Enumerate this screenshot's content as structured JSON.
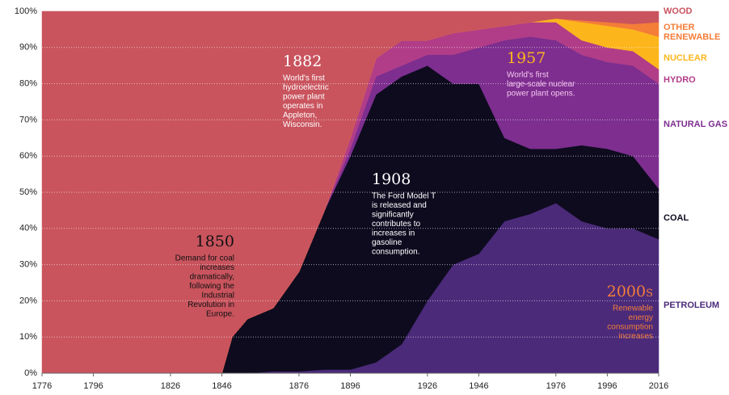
{
  "chart_data": {
    "type": "stacked_area",
    "x": [
      1776,
      1846,
      1850,
      1856,
      1866,
      1876,
      1886,
      1896,
      1906,
      1916,
      1926,
      1936,
      1946,
      1956,
      1966,
      1976,
      1986,
      1996,
      2006,
      2016
    ],
    "series": [
      {
        "name": "PETROLEUM",
        "color": "#4b2a7a",
        "values": [
          0,
          0,
          0,
          0,
          0.5,
          0.5,
          1,
          1,
          3,
          8,
          20,
          30,
          33,
          42,
          44,
          47,
          42,
          40,
          40,
          37
        ]
      },
      {
        "name": "COAL",
        "color": "#0e0b1f",
        "values": [
          0,
          0,
          10,
          15,
          17.5,
          27.5,
          44,
          59,
          74,
          74,
          65,
          50,
          47,
          23,
          18,
          15,
          21,
          22,
          20,
          14
        ]
      },
      {
        "name": "NATURAL GAS",
        "color": "#7d2e8f",
        "values": [
          0,
          0,
          0,
          0,
          0,
          0,
          0,
          2,
          5,
          3,
          3,
          8,
          10,
          27,
          31,
          30,
          25,
          24,
          25,
          29
        ]
      },
      {
        "name": "HYDRO",
        "color": "#b13d88",
        "values": [
          0,
          0,
          0,
          0,
          0,
          0,
          0,
          3,
          5,
          7,
          4,
          6,
          5,
          4,
          4,
          5,
          4,
          4,
          4,
          4
        ]
      },
      {
        "name": "NUCLEAR",
        "color": "#fcb61c",
        "values": [
          0,
          0,
          0,
          0,
          0,
          0,
          0,
          0,
          0,
          0,
          0,
          0,
          0,
          0,
          0,
          1,
          5,
          6,
          6,
          9
        ]
      },
      {
        "name": "OTHER RENEWABLE",
        "color": "#f47d38",
        "values": [
          0,
          0,
          0,
          0,
          0,
          0,
          0,
          0,
          0,
          0,
          0,
          0,
          0,
          0,
          0,
          0,
          0.5,
          1,
          1.5,
          4
        ]
      },
      {
        "name": "WOOD",
        "color": "#c9545e",
        "values": [
          100,
          100,
          90,
          85,
          82,
          72,
          55,
          35,
          13,
          8,
          8,
          6,
          5,
          4,
          3,
          2,
          2.5,
          3,
          3.5,
          3
        ]
      }
    ],
    "xlim": [
      1776,
      2016
    ],
    "xticks": [
      1776,
      1796,
      1826,
      1846,
      1876,
      1896,
      1926,
      1946,
      1976,
      1996,
      2016
    ],
    "ylim": [
      0,
      100
    ],
    "yticks": [
      {
        "value": 0,
        "label": "0%"
      },
      {
        "value": 10,
        "label": "10%"
      },
      {
        "value": 20,
        "label": "20%"
      },
      {
        "value": 30,
        "label": "30%"
      },
      {
        "value": 40,
        "label": "40%"
      },
      {
        "value": 50,
        "label": "50%"
      },
      {
        "value": 60,
        "label": "60%"
      },
      {
        "value": 70,
        "label": "70%"
      },
      {
        "value": 80,
        "label": "80%"
      },
      {
        "value": 90,
        "label": "90%"
      },
      {
        "value": 100,
        "label": "100%"
      }
    ],
    "grid": true,
    "annotations": [
      {
        "title": "1850",
        "lines": [
          "Demand for coal",
          "increases",
          "dramatically,",
          "following the",
          "Industrial",
          "Revolution in",
          "Europe."
        ]
      },
      {
        "title": "1882",
        "lines": [
          "World's first",
          "hydroelectric",
          "power plant",
          "operates in",
          "Appleton,",
          "Wisconsin."
        ]
      },
      {
        "title": "1908",
        "lines": [
          "The Ford Model T",
          "is released and",
          "significantly",
          "contributes to",
          "increases in",
          "gasoline",
          "consumption."
        ]
      },
      {
        "title": "1957",
        "lines": [
          "World's first",
          "large-scale nuclear",
          "power plant opens."
        ]
      },
      {
        "title": "2000s",
        "lines": [
          "Renewable",
          "energy",
          "consumption",
          "increases"
        ]
      }
    ]
  }
}
